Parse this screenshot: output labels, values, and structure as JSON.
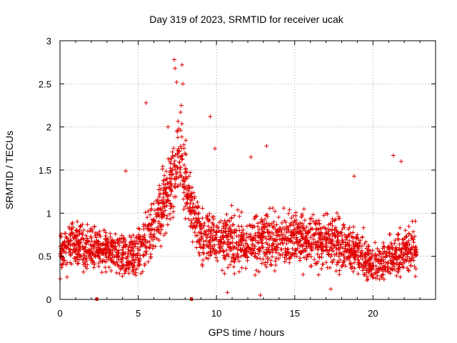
{
  "chart_data": {
    "type": "scatter",
    "title": "Day 319 of 2023, SRMTID for receiver ucak",
    "xlabel": "GPS time / hours",
    "ylabel": "SRMTID / TECUs",
    "xlim": [
      0,
      24
    ],
    "ylim": [
      0,
      3
    ],
    "xticks": [
      0,
      5,
      10,
      15,
      20
    ],
    "xtick_labels": [
      "0",
      "5",
      "10",
      "15",
      "20"
    ],
    "yticks": [
      0,
      0.5,
      1,
      1.5,
      2,
      2.5,
      3
    ],
    "ytick_labels": [
      "0",
      "0.5",
      "1",
      "1.5",
      "2",
      "2.5",
      "3"
    ],
    "grid": true,
    "marker": "plus",
    "color": "#e00000",
    "x_range_of_data": [
      0,
      22.8
    ],
    "data_gaps_marked_at_hours": [
      2.35,
      8.4
    ],
    "envelope": [
      {
        "x": 0.0,
        "center": 0.55,
        "spread": 0.35
      },
      {
        "x": 1.0,
        "center": 0.65,
        "spread": 0.4
      },
      {
        "x": 2.0,
        "center": 0.6,
        "spread": 0.35
      },
      {
        "x": 3.0,
        "center": 0.55,
        "spread": 0.35
      },
      {
        "x": 4.0,
        "center": 0.5,
        "spread": 0.35
      },
      {
        "x": 5.0,
        "center": 0.55,
        "spread": 0.4
      },
      {
        "x": 6.0,
        "center": 0.85,
        "spread": 0.45
      },
      {
        "x": 7.0,
        "center": 1.25,
        "spread": 0.55
      },
      {
        "x": 7.6,
        "center": 1.7,
        "spread": 0.75
      },
      {
        "x": 8.2,
        "center": 1.2,
        "spread": 0.55
      },
      {
        "x": 9.0,
        "center": 0.75,
        "spread": 0.45
      },
      {
        "x": 10.0,
        "center": 0.7,
        "spread": 0.45
      },
      {
        "x": 12.0,
        "center": 0.65,
        "spread": 0.45
      },
      {
        "x": 14.0,
        "center": 0.7,
        "spread": 0.45
      },
      {
        "x": 16.0,
        "center": 0.7,
        "spread": 0.45
      },
      {
        "x": 18.0,
        "center": 0.65,
        "spread": 0.45
      },
      {
        "x": 19.0,
        "center": 0.55,
        "spread": 0.4
      },
      {
        "x": 20.0,
        "center": 0.4,
        "spread": 0.3
      },
      {
        "x": 21.0,
        "center": 0.45,
        "spread": 0.35
      },
      {
        "x": 22.0,
        "center": 0.55,
        "spread": 0.4
      },
      {
        "x": 22.8,
        "center": 0.6,
        "spread": 0.4
      }
    ],
    "outliers": [
      [
        5.5,
        2.28
      ],
      [
        7.3,
        2.78
      ],
      [
        7.35,
        2.68
      ],
      [
        7.45,
        2.52
      ],
      [
        7.8,
        2.72
      ],
      [
        7.85,
        2.5
      ],
      [
        7.75,
        2.25
      ],
      [
        9.6,
        2.12
      ],
      [
        6.9,
        2.0
      ],
      [
        9.9,
        1.75
      ],
      [
        12.2,
        1.65
      ],
      [
        13.2,
        1.78
      ],
      [
        21.3,
        1.67
      ],
      [
        21.8,
        1.6
      ],
      [
        4.2,
        1.49
      ],
      [
        18.8,
        1.43
      ],
      [
        17.3,
        0.12
      ],
      [
        12.8,
        0.05
      ],
      [
        10.7,
        0.08
      ]
    ]
  }
}
